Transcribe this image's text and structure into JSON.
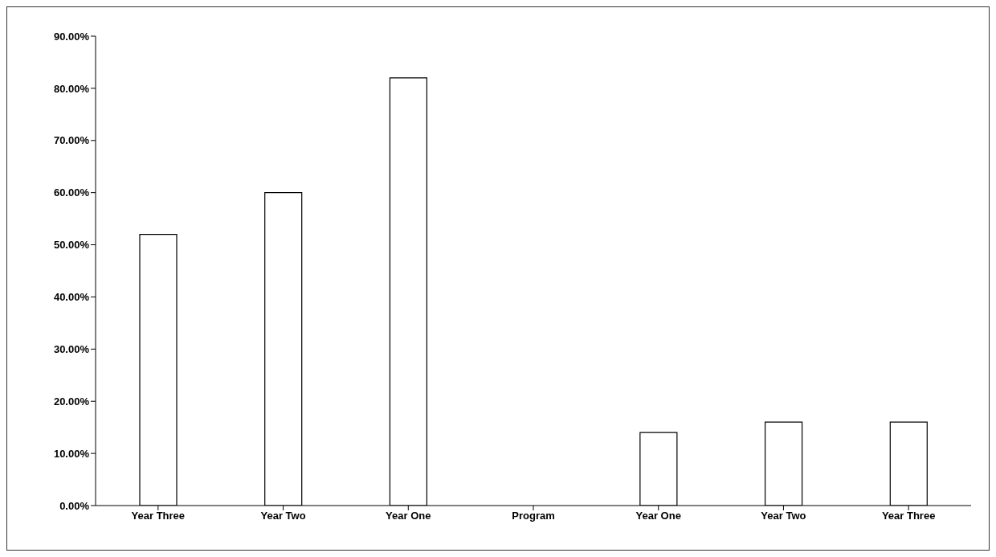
{
  "chart_data": {
    "type": "bar",
    "categories": [
      "Year Three",
      "Year Two",
      "Year One",
      "Program",
      "Year One",
      "Year Two",
      "Year Three"
    ],
    "values": [
      52,
      60,
      82,
      null,
      14,
      16,
      16
    ],
    "color": "#ffffff",
    "ylim": [
      0,
      90
    ],
    "yticks": [
      {
        "value": 0,
        "label": "0.00%"
      },
      {
        "value": 10,
        "label": "10.00%"
      },
      {
        "value": 20,
        "label": "20.00%"
      },
      {
        "value": 30,
        "label": "30.00%"
      },
      {
        "value": 40,
        "label": "40.00%"
      },
      {
        "value": 50,
        "label": "50.00%"
      },
      {
        "value": 60,
        "label": "60.00%"
      },
      {
        "value": 70,
        "label": "70.00%"
      },
      {
        "value": 80,
        "label": "80.00%"
      },
      {
        "value": 90,
        "label": "90.00%"
      }
    ],
    "grid": false,
    "legend": false
  }
}
